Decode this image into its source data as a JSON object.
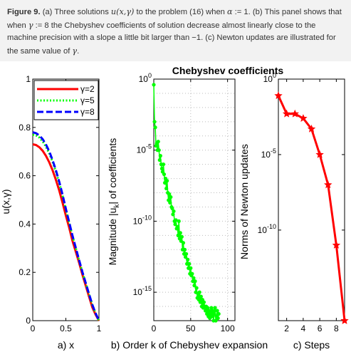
{
  "caption": {
    "label": "Figure 9.",
    "text_html": "(a) Three solutions <span class=\"m\">u(x,γ)</span> to the problem (16) when <span class=\"m\">α</span> := 1. (b) This panel shows that when <span class=\"m\">γ</span> := 8 the Chebyshev coefficients of solution decrease almost linearly close to the machine precision with a slope a little bit larger than −1. (c) Newton updates are illustrated for the same value of <span class=\"m\">γ</span>."
  },
  "colors": {
    "red": "#ff0000",
    "green": "#00ff00",
    "blue": "#0000ff"
  },
  "chart_data": [
    {
      "type": "line",
      "xlabel": "a) x",
      "ylabel": "u(x,γ)",
      "xlim": [
        0,
        1
      ],
      "ylim": [
        0,
        1
      ],
      "xticks": [
        0,
        0.5,
        1
      ],
      "xtick_labels": [
        "0",
        "0.5",
        "1"
      ],
      "yticks": [
        0,
        0.2,
        0.4,
        0.6,
        0.8,
        1
      ],
      "ytick_labels": [
        "0",
        "0.2",
        "0.4",
        "0.6",
        "0.8",
        "1"
      ],
      "legend": {
        "placement": "top-right"
      },
      "series": [
        {
          "name": "γ=2",
          "color": "#ff0000",
          "style": "solid",
          "x": [
            0,
            0.05,
            0.1,
            0.15,
            0.2,
            0.25,
            0.3,
            0.35,
            0.4,
            0.45,
            0.5,
            0.55,
            0.6,
            0.65,
            0.7,
            0.75,
            0.8,
            0.85,
            0.9,
            0.95,
            1.0
          ],
          "y": [
            0.73,
            0.727,
            0.718,
            0.703,
            0.682,
            0.655,
            0.622,
            0.583,
            0.539,
            0.489,
            0.435,
            0.385,
            0.33,
            0.285,
            0.24,
            0.19,
            0.145,
            0.1,
            0.055,
            0.025,
            0.0
          ]
        },
        {
          "name": "γ=5",
          "color": "#00ff00",
          "style": "dotted",
          "x": [
            0,
            0.05,
            0.1,
            0.15,
            0.2,
            0.25,
            0.3,
            0.35,
            0.4,
            0.45,
            0.5,
            0.55,
            0.6,
            0.65,
            0.7,
            0.75,
            0.8,
            0.85,
            0.9,
            0.95,
            1.0
          ],
          "y": [
            0.77,
            0.767,
            0.758,
            0.742,
            0.72,
            0.692,
            0.657,
            0.617,
            0.57,
            0.518,
            0.46,
            0.405,
            0.35,
            0.3,
            0.25,
            0.2,
            0.155,
            0.11,
            0.065,
            0.03,
            0.0
          ]
        },
        {
          "name": "γ=8",
          "color": "#0000ff",
          "style": "dashed",
          "x": [
            0,
            0.05,
            0.1,
            0.15,
            0.2,
            0.25,
            0.3,
            0.35,
            0.4,
            0.45,
            0.5,
            0.55,
            0.6,
            0.65,
            0.7,
            0.75,
            0.8,
            0.85,
            0.9,
            0.95,
            1.0
          ],
          "y": [
            0.78,
            0.776,
            0.767,
            0.751,
            0.729,
            0.7,
            0.664,
            0.623,
            0.575,
            0.522,
            0.463,
            0.407,
            0.352,
            0.301,
            0.251,
            0.201,
            0.156,
            0.111,
            0.066,
            0.03,
            0.0
          ]
        }
      ]
    },
    {
      "type": "scatter",
      "title": "Chebyshev coefficients",
      "xlabel": "b) Order k of Chebyshev expansion",
      "ylabel": "Magnitude |u_k| of coefficients",
      "yscale": "log",
      "xlim": [
        0,
        110
      ],
      "ylim": [
        1e-17,
        1
      ],
      "xticks": [
        0,
        50,
        100
      ],
      "xtick_labels": [
        "0",
        "50",
        "100"
      ],
      "yticks": [
        1,
        1e-05,
        1e-10,
        1e-15
      ],
      "ytick_labels": [
        "10^0",
        "10^-5",
        "10^-10",
        "10^-15"
      ],
      "grid": true,
      "series": [
        {
          "color": "#00ff00",
          "marker": "dot",
          "x": [
            0,
            1,
            2,
            3,
            4,
            5,
            6,
            7,
            8,
            9,
            10,
            11,
            12,
            13,
            14,
            15,
            16,
            17,
            18,
            19,
            20,
            21,
            22,
            23,
            24,
            25,
            26,
            27,
            28,
            29,
            30,
            31,
            32,
            33,
            34,
            35,
            36,
            37,
            38,
            39,
            40,
            41,
            42,
            43,
            44,
            45,
            46,
            47,
            48,
            49,
            50,
            51,
            52,
            53,
            54,
            55,
            56,
            57,
            58,
            59,
            60,
            61,
            62,
            63,
            64,
            65,
            66,
            67,
            68,
            69,
            70,
            71,
            72,
            73,
            74,
            75,
            76,
            77,
            78,
            79,
            80,
            81,
            82,
            83,
            84,
            85,
            86,
            87,
            88
          ],
          "y": [
            0.4,
            0.001,
            0.0004,
            2e-05,
            3e-05,
            1e-05,
            4e-05,
            1e-05,
            2e-06,
            4e-06,
            1e-06,
            5e-07,
            3e-07,
            1e-06,
            2e-07,
            5e-08,
            1e-07,
            2e-08,
            7e-08,
            1e-08,
            3e-09,
            8e-09,
            2e-09,
            5e-09,
            1e-09,
            8e-10,
            3e-10,
            5e-10,
            1e-10,
            6e-11,
            1.2e-10,
            3e-11,
            4e-11,
            1e-11,
            1e-10,
            6e-12,
            1.5e-11,
            4e-12,
            8e-12,
            1e-12,
            3e-12,
            5e-13,
            1e-12,
            3e-13,
            5e-13,
            1e-13,
            2e-13,
            5e-14,
            1e-13,
            2e-14,
            5e-14,
            1.5e-14,
            2e-14,
            6e-15,
            1e-14,
            3e-15,
            6e-15,
            1e-15,
            2e-15,
            4e-16,
            8e-16,
            3e-16,
            1e-15,
            2e-16,
            5e-16,
            1e-16,
            3e-16,
            8e-17,
            2e-16,
            1e-16,
            5e-17,
            1e-16,
            3e-17,
            8e-17,
            2e-17,
            5e-17,
            1.5e-17,
            3e-17,
            8e-17,
            2e-17,
            5e-17,
            1e-17,
            3e-17,
            8e-17,
            1e-17,
            2e-17,
            5e-17,
            1.5e-17,
            3e-17
          ]
        }
      ]
    },
    {
      "type": "line",
      "xlabel": "c) Steps",
      "ylabel": "Norms of Newton updates",
      "yscale": "log",
      "xlim": [
        1,
        9
      ],
      "ylim": [
        1e-16,
        1
      ],
      "xticks": [
        2,
        4,
        6,
        8
      ],
      "xtick_labels": [
        "2",
        "4",
        "6",
        "8"
      ],
      "yticks": [
        1,
        1e-05,
        1e-10
      ],
      "ytick_labels": [
        "10^0",
        "10^-5",
        "10^-10"
      ],
      "series": [
        {
          "color": "#ff0000",
          "marker": "star",
          "x": [
            1,
            2,
            3,
            4,
            5,
            6,
            7,
            8,
            9
          ],
          "y": [
            0.08,
            0.005,
            0.005,
            0.0025,
            0.0005,
            1e-05,
            1e-07,
            1e-11,
            1e-16
          ]
        }
      ]
    }
  ]
}
